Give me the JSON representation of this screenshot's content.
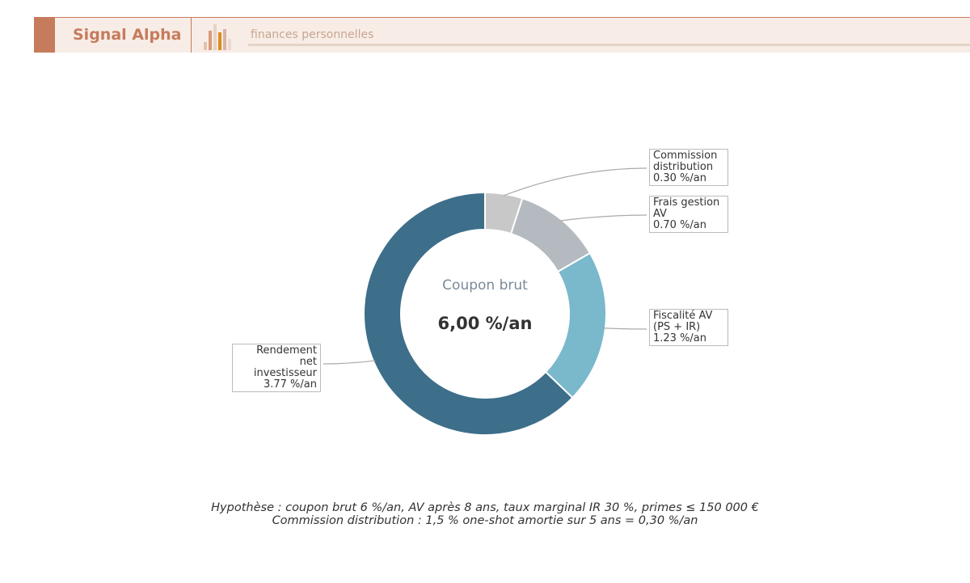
{
  "header": {
    "brand": "Signal Alpha",
    "subtitle": "finances personnelles"
  },
  "chart_data": {
    "type": "donut",
    "categories": [
      "Commission distribution",
      "Frais gestion AV",
      "Fiscalité AV (PS + IR)",
      "Rendement net investisseur"
    ],
    "values": [
      0.3,
      0.7,
      1.23,
      3.77
    ],
    "value_labels": [
      "0.30 %/an",
      "0.70 %/an",
      "1.23 %/an",
      "3.77 %/an"
    ],
    "colors": [
      "#c8c8c8",
      "#b5bac1",
      "#7ab8cc",
      "#3d6e8a"
    ],
    "center_title": "Coupon brut",
    "center_text": "6,00 %/an"
  },
  "footnote": [
    "Hypothèse : coupon brut 6 %/an, AV après 8 ans, taux marginal IR 30 %, primes ≤ 150 000 €",
    "Commission distribution : 1,5 % one-shot amortie sur 5 ans = 0,30 %/an"
  ]
}
